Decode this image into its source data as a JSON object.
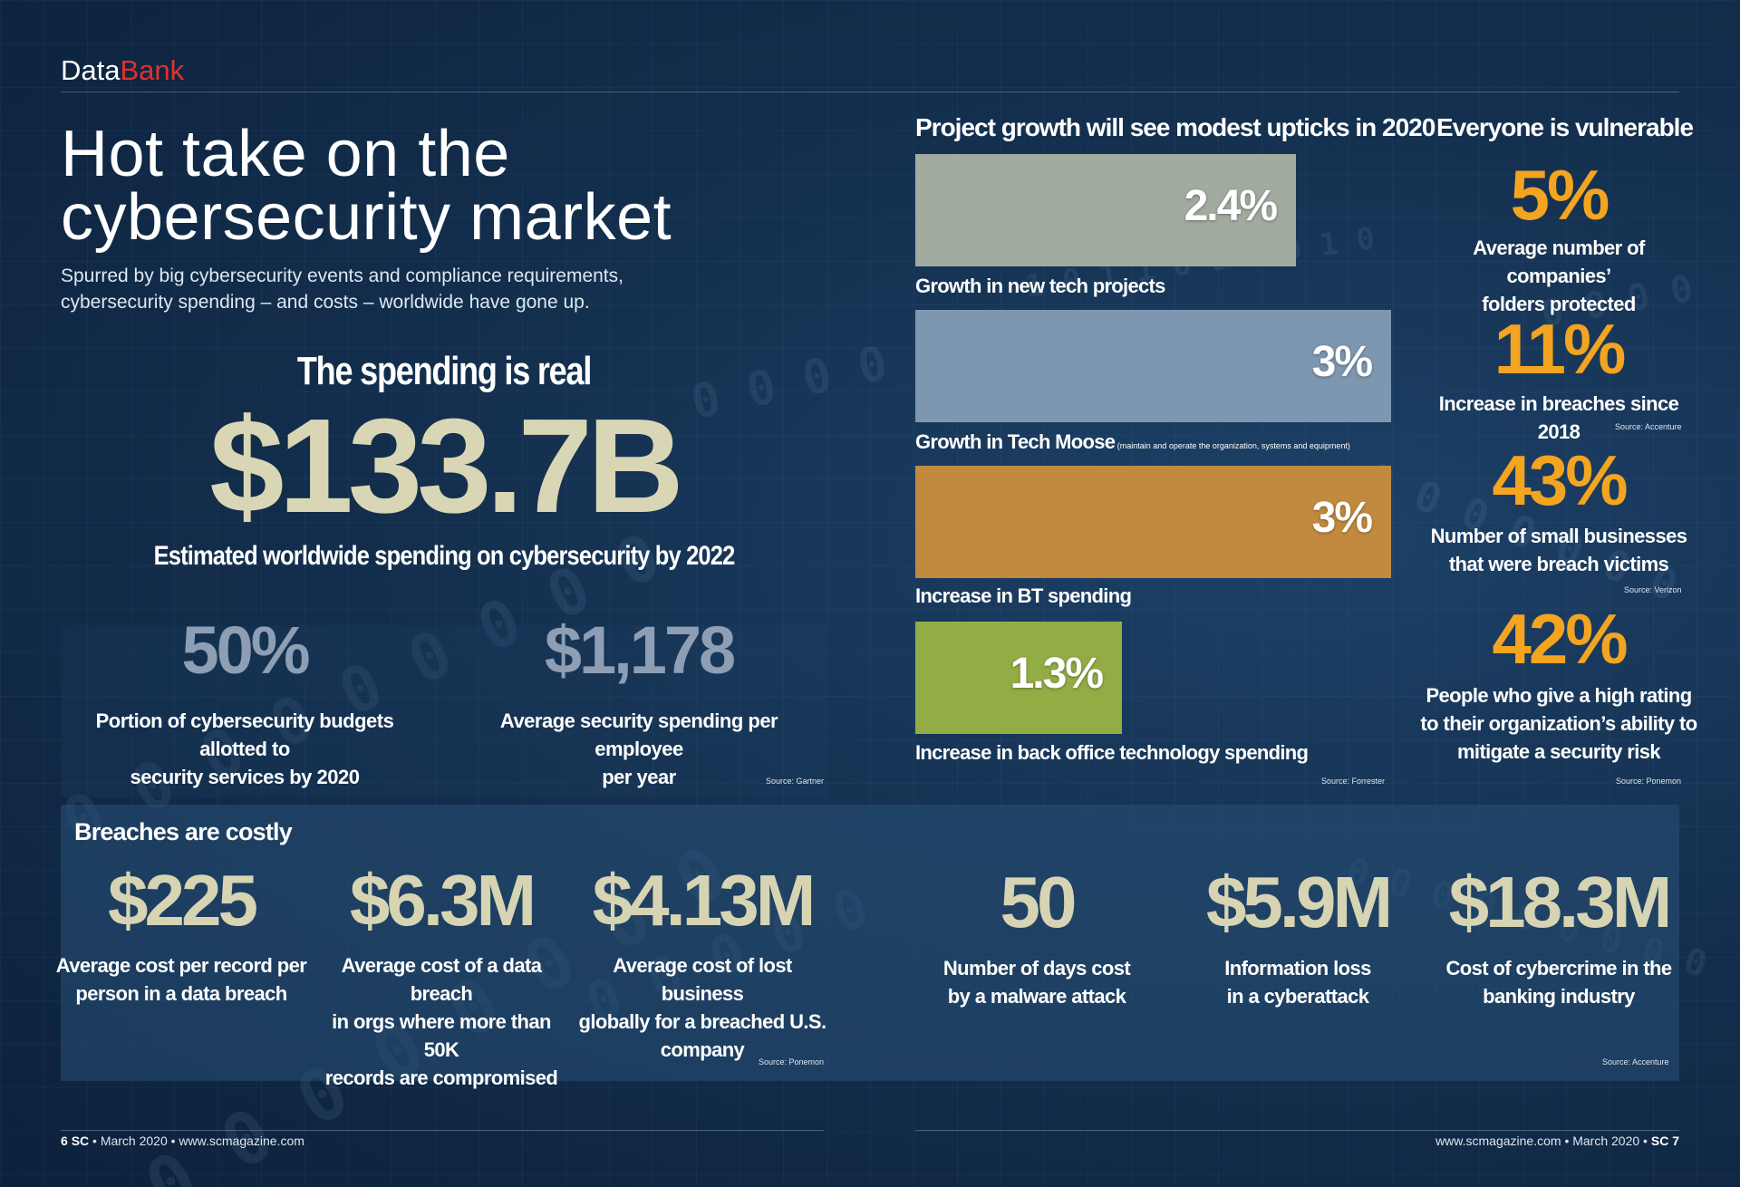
{
  "header": {
    "brand_part1": "Data",
    "brand_part2": "Bank"
  },
  "hero": {
    "title_line1": "Hot take on the",
    "title_line2": "cybersecurity market",
    "subtitle_line1": "Spurred by big cybersecurity events and compliance requirements,",
    "subtitle_line2": "cybersecurity spending – and costs – worldwide have gone up."
  },
  "spending": {
    "heading": "The spending is real",
    "value": "$133.7B",
    "description": "Estimated worldwide spending on cybersecurity by 2022",
    "stats": [
      {
        "value": "50%",
        "line1": "Portion of cybersecurity budgets allotted to",
        "line2": "security services by 2020"
      },
      {
        "value": "$1,178",
        "line1": "Average security spending per employee",
        "line2": "per year"
      }
    ],
    "source": "Source: Gartner"
  },
  "growth_chart": {
    "title": "Project growth will see modest upticks in 2020",
    "source": "Source: Forrester",
    "footnote": "(maintain and operate the organization, systems and equipment)"
  },
  "chart_data": {
    "type": "bar",
    "orientation": "horizontal",
    "title": "Project growth will see modest upticks in 2020",
    "categories": [
      "Growth in new tech projects",
      "Growth in Tech Moose",
      "Increase in BT spending",
      "Increase in back office technology spending"
    ],
    "values": [
      2.4,
      3,
      3,
      1.3
    ],
    "value_labels": [
      "2.4%",
      "3%",
      "3%",
      "1.3%"
    ],
    "colors": [
      "#a1ab9e",
      "#7e97b1",
      "#c28a3e",
      "#93ad45"
    ],
    "grid": false,
    "legend": "none"
  },
  "vulnerable": {
    "title": "Everyone is vulnerable",
    "items": [
      {
        "value": "5%",
        "line1": "Average number of companies’",
        "line2": "folders protected",
        "line3": "",
        "source": ""
      },
      {
        "value": "11%",
        "line1": "Increase in breaches since 2018",
        "line2": "",
        "line3": "",
        "source": "Source: Accenture"
      },
      {
        "value": "43%",
        "line1": "Number of small businesses",
        "line2": "that were breach victims",
        "line3": "",
        "source": "Source: Verizon"
      },
      {
        "value": "42%",
        "line1": "People who give a high rating",
        "line2": "to their organization’s ability to",
        "line3": "mitigate a security risk",
        "source": "Source: Ponemon"
      }
    ]
  },
  "breaches": {
    "title": "Breaches are costly",
    "items": [
      {
        "value": "$225",
        "line1": "Average cost per record per",
        "line2": "person in a data breach",
        "line3": ""
      },
      {
        "value": "$6.3M",
        "line1": "Average cost of a data breach",
        "line2": "in orgs where more than 50K",
        "line3": "records are compromised"
      },
      {
        "value": "$4.13M",
        "line1": "Average cost of lost business",
        "line2": "globally for a breached U.S.",
        "line3": "company"
      },
      {
        "value": "50",
        "line1": "Number of days cost",
        "line2": "by a malware attack",
        "line3": ""
      },
      {
        "value": "$5.9M",
        "line1": "Information loss",
        "line2": "in a cyberattack",
        "line3": ""
      },
      {
        "value": "$18.3M",
        "line1": "Cost of cybercrime in the",
        "line2": "banking industry",
        "line3": ""
      }
    ],
    "source_left": "Source: Ponemon",
    "source_right": "Source: Accenture"
  },
  "footer": {
    "left_page": "6",
    "left_mag": "SC",
    "left_rest": "• March 2020 • www.scmagazine.com",
    "right_rest": "www.scmagazine.com • March 2020 •",
    "right_mag": "SC",
    "right_page": "7"
  }
}
